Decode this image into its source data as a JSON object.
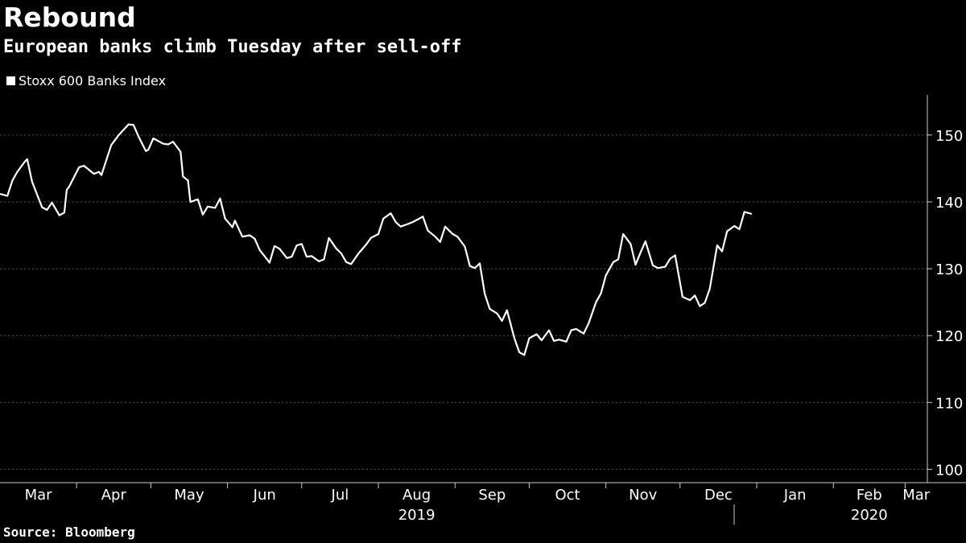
{
  "header": {
    "title": "Rebound",
    "subtitle": "European banks climb Tuesday after sell-off"
  },
  "legend": {
    "label": "Stoxx 600 Banks Index",
    "color": "#ffffff"
  },
  "source": "Source: Bloomberg",
  "colors": {
    "background": "#000000",
    "line": "#ffffff",
    "grid": "#555555",
    "axis": "#cccccc"
  },
  "chart_data": {
    "type": "line",
    "title": "Rebound",
    "subtitle": "European banks climb Tuesday after sell-off",
    "xlabel": "",
    "ylabel": "",
    "ylim": [
      98,
      156
    ],
    "yticks": [
      100,
      110,
      120,
      130,
      140,
      150
    ],
    "grid": true,
    "grid_style": "dashed-horizontal",
    "y_axis_side": "right",
    "legend_position": "top-left",
    "month_labels": [
      "Mar",
      "Apr",
      "May",
      "Jun",
      "Jul",
      "Aug",
      "Sep",
      "Oct",
      "Nov",
      "Dec",
      "Jan",
      "Feb",
      "Mar"
    ],
    "year_labels": [
      {
        "label": "2019",
        "month": "Aug"
      },
      {
        "label": "2020",
        "month": "Feb"
      }
    ],
    "x_start": "2019-03-01",
    "x_end": "2020-03-10",
    "series": [
      {
        "name": "Stoxx 600 Banks Index",
        "points": [
          [
            "2019-03-01",
            141.2
          ],
          [
            "2019-03-04",
            140.9
          ],
          [
            "2019-03-06",
            143.2
          ],
          [
            "2019-03-08",
            144.5
          ],
          [
            "2019-03-11",
            146.0
          ],
          [
            "2019-03-12",
            146.4
          ],
          [
            "2019-03-14",
            143.0
          ],
          [
            "2019-03-18",
            139.2
          ],
          [
            "2019-03-20",
            138.8
          ],
          [
            "2019-03-22",
            139.9
          ],
          [
            "2019-03-25",
            138.0
          ],
          [
            "2019-03-27",
            138.4
          ],
          [
            "2019-03-28",
            141.8
          ],
          [
            "2019-03-29",
            142.3
          ],
          [
            "2019-04-02",
            145.2
          ],
          [
            "2019-04-04",
            145.4
          ],
          [
            "2019-04-08",
            144.2
          ],
          [
            "2019-04-10",
            144.5
          ],
          [
            "2019-04-11",
            144.0
          ],
          [
            "2019-04-15",
            148.5
          ],
          [
            "2019-04-18",
            150.0
          ],
          [
            "2019-04-22",
            151.6
          ],
          [
            "2019-04-24",
            151.5
          ],
          [
            "2019-04-26",
            149.8
          ],
          [
            "2019-04-29",
            147.6
          ],
          [
            "2019-04-30",
            147.8
          ],
          [
            "2019-05-02",
            149.5
          ],
          [
            "2019-05-06",
            148.7
          ],
          [
            "2019-05-08",
            148.6
          ],
          [
            "2019-05-10",
            149.0
          ],
          [
            "2019-05-13",
            147.5
          ],
          [
            "2019-05-14",
            143.8
          ],
          [
            "2019-05-16",
            143.2
          ],
          [
            "2019-05-17",
            140.0
          ],
          [
            "2019-05-20",
            140.4
          ],
          [
            "2019-05-22",
            138.1
          ],
          [
            "2019-05-24",
            139.3
          ],
          [
            "2019-05-27",
            139.1
          ],
          [
            "2019-05-29",
            140.5
          ],
          [
            "2019-05-31",
            137.5
          ],
          [
            "2019-06-03",
            136.2
          ],
          [
            "2019-06-04",
            137.2
          ],
          [
            "2019-06-07",
            134.8
          ],
          [
            "2019-06-10",
            135.0
          ],
          [
            "2019-06-12",
            134.5
          ],
          [
            "2019-06-14",
            132.8
          ],
          [
            "2019-06-17",
            131.4
          ],
          [
            "2019-06-18",
            130.9
          ],
          [
            "2019-06-20",
            133.4
          ],
          [
            "2019-06-22",
            133.0
          ],
          [
            "2019-06-25",
            131.6
          ],
          [
            "2019-06-27",
            131.8
          ],
          [
            "2019-06-29",
            133.5
          ],
          [
            "2019-07-01",
            133.7
          ],
          [
            "2019-07-03",
            131.8
          ],
          [
            "2019-07-05",
            131.9
          ],
          [
            "2019-07-08",
            131.1
          ],
          [
            "2019-07-10",
            131.4
          ],
          [
            "2019-07-12",
            134.6
          ],
          [
            "2019-07-15",
            133.0
          ],
          [
            "2019-07-17",
            132.3
          ],
          [
            "2019-07-19",
            131.0
          ],
          [
            "2019-07-21",
            130.7
          ],
          [
            "2019-07-24",
            132.3
          ],
          [
            "2019-07-27",
            133.6
          ],
          [
            "2019-07-29",
            134.6
          ],
          [
            "2019-08-01",
            135.2
          ],
          [
            "2019-08-03",
            137.5
          ],
          [
            "2019-08-06",
            138.3
          ],
          [
            "2019-08-08",
            137.0
          ],
          [
            "2019-08-10",
            136.3
          ],
          [
            "2019-08-13",
            136.7
          ],
          [
            "2019-08-15",
            137.0
          ],
          [
            "2019-08-17",
            137.4
          ],
          [
            "2019-08-19",
            137.8
          ],
          [
            "2019-08-21",
            135.7
          ],
          [
            "2019-08-24",
            134.8
          ],
          [
            "2019-08-26",
            134.0
          ],
          [
            "2019-08-28",
            136.3
          ],
          [
            "2019-08-31",
            135.2
          ],
          [
            "2019-09-02",
            134.8
          ],
          [
            "2019-09-05",
            133.3
          ],
          [
            "2019-09-07",
            130.4
          ],
          [
            "2019-09-09",
            130.1
          ],
          [
            "2019-09-11",
            130.8
          ],
          [
            "2019-09-13",
            126.3
          ],
          [
            "2019-09-15",
            124.0
          ],
          [
            "2019-09-18",
            123.3
          ],
          [
            "2019-09-20",
            122.2
          ],
          [
            "2019-09-22",
            123.8
          ],
          [
            "2019-09-25",
            119.6
          ],
          [
            "2019-09-27",
            117.5
          ],
          [
            "2019-09-29",
            117.1
          ],
          [
            "2019-10-01",
            119.6
          ],
          [
            "2019-10-04",
            120.2
          ],
          [
            "2019-10-06",
            119.3
          ],
          [
            "2019-10-09",
            120.8
          ],
          [
            "2019-10-11",
            119.2
          ],
          [
            "2019-10-13",
            119.4
          ],
          [
            "2019-10-16",
            119.1
          ],
          [
            "2019-10-18",
            120.8
          ],
          [
            "2019-10-20",
            121.0
          ],
          [
            "2019-10-23",
            120.3
          ],
          [
            "2019-10-25",
            121.8
          ],
          [
            "2019-10-28",
            125.0
          ],
          [
            "2019-10-30",
            126.3
          ],
          [
            "2019-11-01",
            129.0
          ],
          [
            "2019-11-04",
            131.0
          ],
          [
            "2019-11-06",
            131.4
          ],
          [
            "2019-11-08",
            135.2
          ],
          [
            "2019-11-11",
            133.7
          ],
          [
            "2019-11-13",
            130.6
          ],
          [
            "2019-11-15",
            132.4
          ],
          [
            "2019-11-17",
            134.1
          ],
          [
            "2019-11-20",
            130.5
          ],
          [
            "2019-11-22",
            130.1
          ],
          [
            "2019-11-25",
            130.3
          ],
          [
            "2019-11-27",
            131.5
          ],
          [
            "2019-11-29",
            132.0
          ],
          [
            "2019-12-02",
            125.8
          ],
          [
            "2019-12-05",
            125.3
          ],
          [
            "2019-12-07",
            126.0
          ],
          [
            "2019-12-09",
            124.4
          ],
          [
            "2019-12-11",
            124.9
          ],
          [
            "2019-12-13",
            127.0
          ],
          [
            "2019-12-16",
            133.5
          ],
          [
            "2019-12-18",
            132.6
          ],
          [
            "2019-12-20",
            135.6
          ],
          [
            "2019-12-23",
            136.4
          ],
          [
            "2019-12-25",
            135.9
          ],
          [
            "2019-12-27",
            138.5
          ],
          [
            "2019-12-30",
            138.2
          ]
        ]
      }
    ]
  }
}
